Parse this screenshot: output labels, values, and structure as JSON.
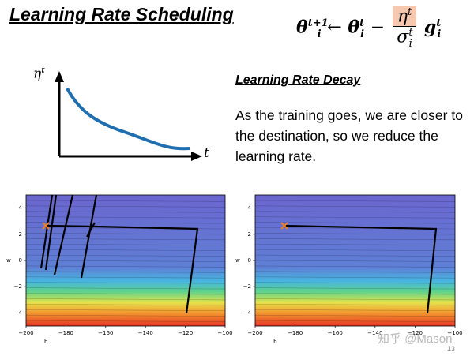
{
  "title": "Learning Rate Scheduling",
  "formula": {
    "lhs": "θ",
    "lhs_sup": "t+1",
    "lhs_sub": "i",
    "arrow": "←",
    "rhs": "θ",
    "rhs_sup": "t",
    "rhs_sub": "i",
    "minus": "−",
    "num": "η",
    "num_sup": "t",
    "den": "σ",
    "den_sup": "t",
    "den_sub": "i",
    "grad": "g",
    "grad_sup": "t",
    "grad_sub": "i"
  },
  "sketch": {
    "y_label": "η",
    "y_label_sup": "t",
    "x_label": "t"
  },
  "heading": "Learning Rate Decay",
  "body": "As the training goes, we are closer to the destination, so we reduce the learning rate.",
  "plots": [
    {
      "xlabel": "b",
      "ylabel": "w",
      "xlim": [
        -200,
        -100
      ],
      "ylim": [
        -5,
        5
      ],
      "xticks": [
        {
          "value": -200,
          "label": "−200"
        },
        {
          "value": -180,
          "label": "−180"
        },
        {
          "value": -160,
          "label": "−160"
        },
        {
          "value": -140,
          "label": "−140"
        },
        {
          "value": -120,
          "label": "−120"
        },
        {
          "value": -100,
          "label": "−100"
        }
      ],
      "yticks": [
        {
          "value": -4,
          "label": "−4"
        },
        {
          "value": -2,
          "label": "−2"
        },
        0,
        2,
        4
      ]
    },
    {
      "xlabel": "b",
      "ylabel": "w",
      "xlim": [
        -200,
        -100
      ],
      "ylim": [
        -5,
        5
      ],
      "xticks": [
        {
          "value": -200,
          "label": "−200"
        },
        {
          "value": -180,
          "label": "−180"
        },
        {
          "value": -160,
          "label": "−160"
        },
        {
          "value": -140,
          "label": "−140"
        },
        {
          "value": -120,
          "label": "−120"
        },
        {
          "value": -100,
          "label": "−100"
        }
      ],
      "yticks": [
        {
          "value": -4,
          "label": "−4"
        },
        {
          "value": -2,
          "label": "−2"
        },
        0,
        2,
        4
      ]
    }
  ],
  "watermark": "知乎 @Mason",
  "page_number": "13"
}
